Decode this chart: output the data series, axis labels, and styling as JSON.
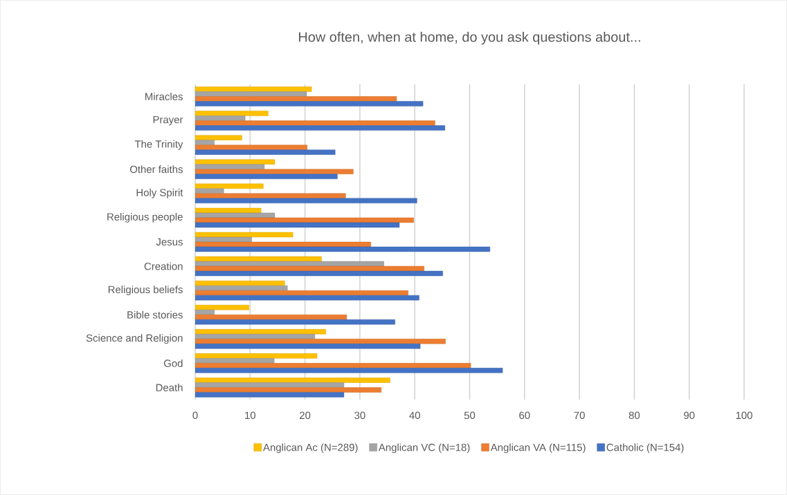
{
  "chart_data": {
    "type": "bar",
    "orientation": "horizontal",
    "title": "How often, when at home, do you ask questions about...",
    "categories": [
      "Miracles",
      "Prayer",
      "The Trinity",
      "Other faiths",
      "Holy Spirit",
      "Religious people",
      "Jesus",
      "Creation",
      "Religious beliefs",
      "Bible stories",
      "Science and Religion",
      "God",
      "Death"
    ],
    "series": [
      {
        "name": "Anglican Ac (N=289)",
        "color": "#ffc000",
        "values": [
          21.2,
          13.3,
          8.5,
          14.5,
          12.4,
          12.0,
          17.8,
          23.0,
          16.3,
          9.8,
          23.8,
          22.2,
          35.5
        ]
      },
      {
        "name": "Anglican VC (N=18)",
        "color": "#a5a5a5",
        "values": [
          20.3,
          9.1,
          3.5,
          12.6,
          5.2,
          14.5,
          10.3,
          34.4,
          16.8,
          3.5,
          21.8,
          14.4,
          27.1
        ]
      },
      {
        "name": "Anglican VA (N=115)",
        "color": "#ed7d31",
        "values": [
          36.7,
          43.7,
          20.4,
          28.8,
          27.4,
          39.8,
          32.0,
          41.7,
          38.8,
          27.6,
          45.6,
          50.2,
          33.9
        ]
      },
      {
        "name": "Catholic (N=154)",
        "color": "#4472c4",
        "values": [
          41.5,
          45.5,
          25.5,
          25.9,
          40.4,
          37.2,
          53.7,
          45.1,
          40.8,
          36.4,
          41.0,
          56.0,
          27.1
        ]
      }
    ],
    "xlim": [
      0,
      100
    ],
    "xticks": [
      0,
      10,
      20,
      30,
      40,
      50,
      60,
      70,
      80,
      90,
      100
    ],
    "grid": "x",
    "legend": "bottom"
  }
}
